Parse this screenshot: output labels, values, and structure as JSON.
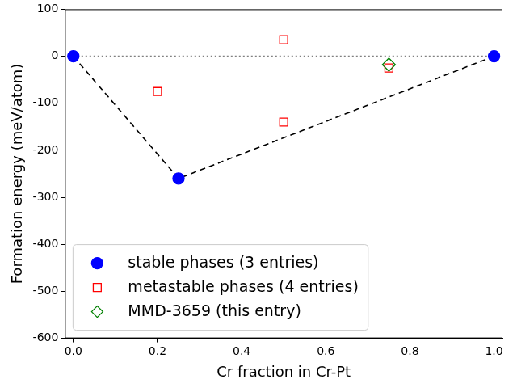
{
  "chart_data": {
    "type": "scatter",
    "x_label": "Cr fraction in Cr-Pt",
    "y_label": "Formation energy (meV/atom)",
    "xlim": [
      -0.02,
      1.02
    ],
    "xticks": [
      {
        "value": 0,
        "label": "0.0"
      },
      {
        "value": 0.2,
        "label": "0.2"
      },
      {
        "value": 0.4,
        "label": "0.4"
      },
      {
        "value": 0.6,
        "label": "0.6"
      },
      {
        "value": 0.8,
        "label": "0.8"
      },
      {
        "value": 1,
        "label": "1.0"
      }
    ],
    "ylim": [
      -600,
      100
    ],
    "yticks": [
      -600,
      -500,
      -400,
      -300,
      -200,
      -100,
      0,
      100
    ],
    "grid": false,
    "legend": "lower left",
    "series": [
      {
        "name": "stable phases (3 entries)",
        "color": "blue",
        "marker": "circle",
        "x": [
          0,
          0.25,
          1
        ],
        "values": [
          0,
          -260,
          0
        ]
      },
      {
        "name": "metastable phases (4 entries)",
        "color": "red",
        "marker": "open_square",
        "x": [
          0.2,
          0.5,
          0.5,
          0.75
        ],
        "values": [
          -75,
          35,
          -140,
          -25
        ]
      },
      {
        "name": "MMD-3659 (this entry)",
        "color": "green",
        "marker": "open_diamond",
        "x": [
          0.75
        ],
        "values": [
          -18
        ]
      },
      {
        "color": "black",
        "marker": "none",
        "line_style": "dashed",
        "x": [
          0,
          0.25,
          1
        ],
        "values": [
          0,
          -260,
          0
        ]
      },
      {
        "color": "gray",
        "marker": "none",
        "line_style": "dotted",
        "x": [
          0,
          1
        ],
        "values": [
          0,
          0
        ]
      }
    ]
  }
}
